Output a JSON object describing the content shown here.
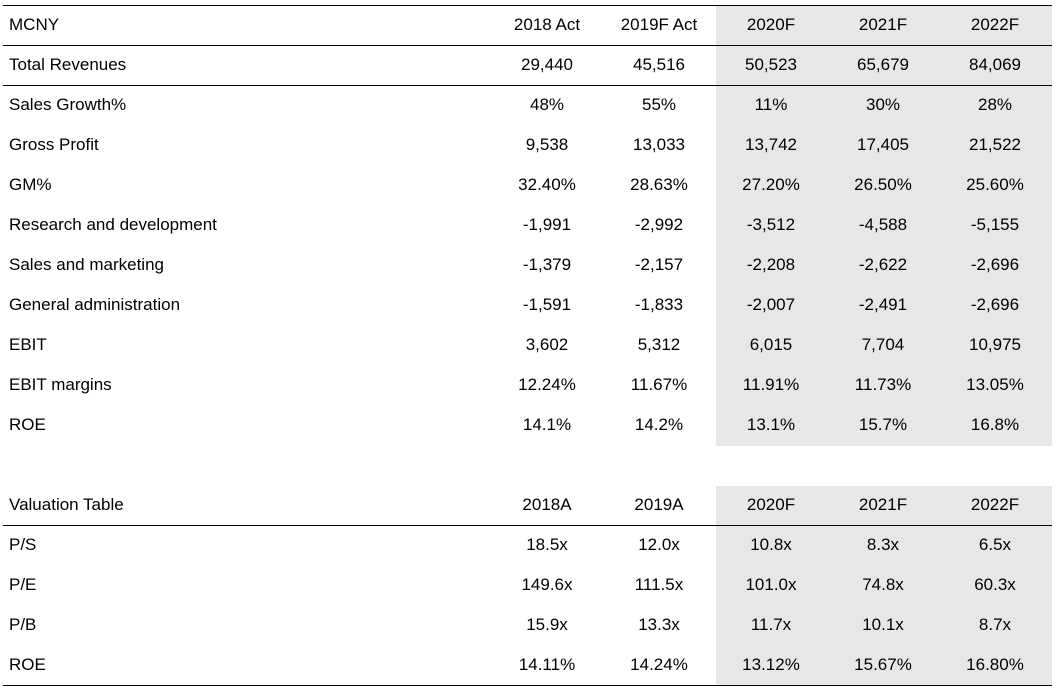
{
  "table1": {
    "headers": [
      "MCNY",
      "2018 Act",
      "2019F Act",
      "2020F",
      "2021F",
      "2022F"
    ],
    "rows": [
      [
        "Total Revenues",
        "29,440",
        "45,516",
        "50,523",
        "65,679",
        "84,069"
      ],
      [
        "Sales Growth%",
        "48%",
        "55%",
        "11%",
        "30%",
        "28%"
      ],
      [
        "Gross Profit",
        "9,538",
        "13,033",
        "13,742",
        "17,405",
        "21,522"
      ],
      [
        "GM%",
        "32.40%",
        "28.63%",
        "27.20%",
        "26.50%",
        "25.60%"
      ],
      [
        "Research and development",
        "-1,991",
        "-2,992",
        "-3,512",
        "-4,588",
        "-5,155"
      ],
      [
        "Sales and marketing",
        "-1,379",
        "-2,157",
        "-2,208",
        "-2,622",
        "-2,696"
      ],
      [
        "General administration",
        "-1,591",
        "-1,833",
        "-2,007",
        "-2,491",
        "-2,696"
      ],
      [
        "EBIT",
        "3,602",
        "5,312",
        "6,015",
        "7,704",
        "10,975"
      ],
      [
        "EBIT margins",
        "12.24%",
        "11.67%",
        "11.91%",
        "11.73%",
        "13.05%"
      ],
      [
        "ROE",
        "14.1%",
        "14.2%",
        "13.1%",
        "15.7%",
        "16.8%"
      ]
    ]
  },
  "table2": {
    "headers": [
      "Valuation Table",
      "2018A",
      "2019A",
      "2020F",
      "2021F",
      "2022F"
    ],
    "rows": [
      [
        "P/S",
        "18.5x",
        "12.0x",
        "10.8x",
        "8.3x",
        "6.5x"
      ],
      [
        "P/E",
        "149.6x",
        "111.5x",
        "101.0x",
        "74.8x",
        "60.3x"
      ],
      [
        "P/B",
        "15.9x",
        "13.3x",
        "11.7x",
        "10.1x",
        "8.7x"
      ],
      [
        "ROE",
        "14.11%",
        "14.24%",
        "13.12%",
        "15.67%",
        "16.80%"
      ]
    ]
  },
  "colors": {
    "forecast_shade": "#e7e7e7",
    "rule": "#000000"
  }
}
